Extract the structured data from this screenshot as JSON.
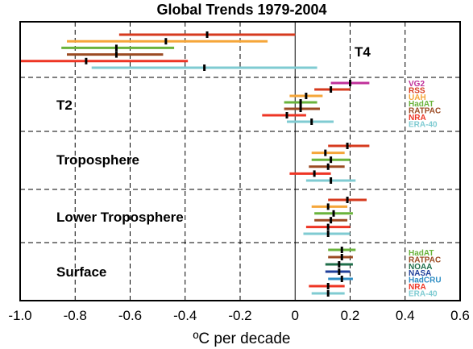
{
  "chart_data": {
    "type": "interval",
    "title": "Global Trends 1979-2004",
    "xlabel": "ºC per decade",
    "ylabel": "",
    "xlim": [
      -1.0,
      0.6
    ],
    "xticks": [
      "-1.0",
      "-0.8",
      "-0.6",
      "-0.4",
      "-0.2",
      "0",
      "0.2",
      "0.4",
      "0.6"
    ],
    "grid": true,
    "datasets": [
      {
        "name": "VG2",
        "color": "#c0309a"
      },
      {
        "name": "RSS",
        "color": "#d63a1e"
      },
      {
        "name": "UAH",
        "color": "#f5a63a"
      },
      {
        "name": "HadAT",
        "color": "#69b33b"
      },
      {
        "name": "RATPAC",
        "color": "#9b4a22"
      },
      {
        "name": "NRA",
        "color": "#ee3524"
      },
      {
        "name": "ERA-40",
        "color": "#7fcbd2"
      },
      {
        "name": "NOAA",
        "color": "#1f6e4a"
      },
      {
        "name": "NASA",
        "color": "#1f3f9a"
      },
      {
        "name": "HadCRU",
        "color": "#2e8ec4"
      }
    ],
    "panels": [
      {
        "label": "T4",
        "legend": [],
        "rows": [
          {
            "dataset": "RSS",
            "center": -0.32,
            "low": -0.64,
            "high": 0.0
          },
          {
            "dataset": "UAH",
            "center": -0.47,
            "low": -0.83,
            "high": -0.1
          },
          {
            "dataset": "HadAT",
            "center": -0.65,
            "low": -0.85,
            "high": -0.44
          },
          {
            "dataset": "RATPAC",
            "center": -0.65,
            "low": -0.83,
            "high": -0.48
          },
          {
            "dataset": "NRA",
            "center": -0.76,
            "low": -1.0,
            "high": -0.39
          },
          {
            "dataset": "ERA-40",
            "center": -0.33,
            "low": -0.74,
            "high": 0.08
          }
        ]
      },
      {
        "label": "T2",
        "legend": [
          "VG2",
          "RSS",
          "UAH",
          "HadAT",
          "RATPAC",
          "NRA",
          "ERA-40"
        ],
        "rows": [
          {
            "dataset": "VG2",
            "center": 0.2,
            "low": 0.13,
            "high": 0.27
          },
          {
            "dataset": "RSS",
            "center": 0.13,
            "low": 0.07,
            "high": 0.2
          },
          {
            "dataset": "UAH",
            "center": 0.04,
            "low": -0.02,
            "high": 0.1
          },
          {
            "dataset": "HadAT",
            "center": 0.02,
            "low": -0.04,
            "high": 0.08
          },
          {
            "dataset": "RATPAC",
            "center": 0.02,
            "low": -0.04,
            "high": 0.09
          },
          {
            "dataset": "NRA",
            "center": -0.03,
            "low": -0.12,
            "high": 0.04
          },
          {
            "dataset": "ERA-40",
            "center": 0.06,
            "low": -0.03,
            "high": 0.14
          }
        ]
      },
      {
        "label": "Troposphere",
        "legend": [],
        "rows": [
          {
            "dataset": "RSS",
            "center": 0.19,
            "low": 0.12,
            "high": 0.27
          },
          {
            "dataset": "UAH",
            "center": 0.11,
            "low": 0.06,
            "high": 0.18
          },
          {
            "dataset": "HadAT",
            "center": 0.13,
            "low": 0.06,
            "high": 0.2
          },
          {
            "dataset": "RATPAC",
            "center": 0.12,
            "low": 0.05,
            "high": 0.18
          },
          {
            "dataset": "NRA",
            "center": 0.07,
            "low": -0.02,
            "high": 0.13
          },
          {
            "dataset": "ERA-40",
            "center": 0.13,
            "low": 0.04,
            "high": 0.22
          }
        ]
      },
      {
        "label": "Lower Troposphere",
        "legend": [],
        "rows": [
          {
            "dataset": "RSS",
            "center": 0.19,
            "low": 0.12,
            "high": 0.26
          },
          {
            "dataset": "UAH",
            "center": 0.12,
            "low": 0.06,
            "high": 0.19
          },
          {
            "dataset": "HadAT",
            "center": 0.14,
            "low": 0.07,
            "high": 0.21
          },
          {
            "dataset": "RATPAC",
            "center": 0.13,
            "low": 0.07,
            "high": 0.19
          },
          {
            "dataset": "NRA",
            "center": 0.12,
            "low": 0.04,
            "high": 0.2
          },
          {
            "dataset": "ERA-40",
            "center": 0.12,
            "low": 0.03,
            "high": 0.2
          }
        ]
      },
      {
        "label": "Surface",
        "legend": [
          "HadAT",
          "RATPAC",
          "NOAA",
          "NASA",
          "HadCRU",
          "NRA",
          "ERA-40"
        ],
        "rows": [
          {
            "dataset": "HadAT",
            "center": 0.17,
            "low": 0.12,
            "high": 0.22
          },
          {
            "dataset": "RATPAC",
            "center": 0.17,
            "low": 0.12,
            "high": 0.21
          },
          {
            "dataset": "NOAA",
            "center": 0.16,
            "low": 0.11,
            "high": 0.21
          },
          {
            "dataset": "NASA",
            "center": 0.16,
            "low": 0.11,
            "high": 0.2
          },
          {
            "dataset": "HadCRU",
            "center": 0.17,
            "low": 0.12,
            "high": 0.21
          },
          {
            "dataset": "NRA",
            "center": 0.12,
            "low": 0.05,
            "high": 0.18
          },
          {
            "dataset": "ERA-40",
            "center": 0.12,
            "low": 0.06,
            "high": 0.18
          }
        ]
      }
    ]
  }
}
